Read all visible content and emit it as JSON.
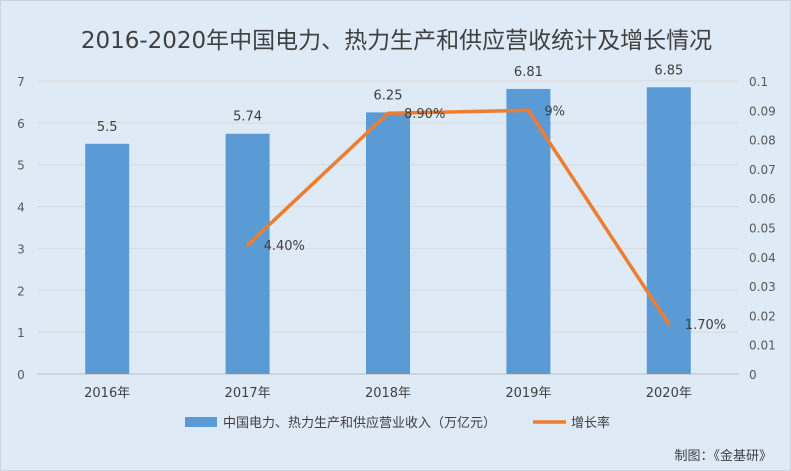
{
  "chart_data": {
    "type": "bar+line",
    "title": "2016-2020年中国电力、热力生产和供应营收统计及增长情况",
    "categories": [
      "2016年",
      "2017年",
      "2018年",
      "2019年",
      "2020年"
    ],
    "series": [
      {
        "name": "中国电力、热力生产和供应营业收入（万亿元）",
        "type": "bar",
        "axis": "left",
        "values": [
          5.5,
          5.74,
          6.25,
          6.81,
          6.85
        ],
        "labels": [
          "5.5",
          "5.74",
          "6.25",
          "6.81",
          "6.85"
        ],
        "color": "#5b9bd5"
      },
      {
        "name": "增长率",
        "type": "line",
        "axis": "right",
        "values": [
          null,
          0.044,
          0.089,
          0.09,
          0.017
        ],
        "labels": [
          "",
          "4.40%",
          "8.90%",
          "9%",
          "1.70%"
        ],
        "color": "#ed7d31"
      }
    ],
    "left_axis": {
      "ylim": [
        0,
        7
      ],
      "ticks": [
        "0",
        "1",
        "2",
        "3",
        "4",
        "5",
        "6",
        "7"
      ]
    },
    "right_axis": {
      "ylim": [
        0,
        0.1
      ],
      "ticks": [
        "0",
        "0.01",
        "0.02",
        "0.03",
        "0.04",
        "0.05",
        "0.06",
        "0.07",
        "0.08",
        "0.09",
        "0.1"
      ]
    },
    "grid": true,
    "legend": "bottom"
  },
  "credit": "制图：《金基研》"
}
